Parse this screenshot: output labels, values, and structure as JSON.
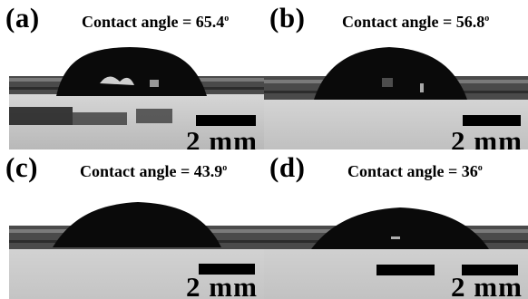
{
  "panels": [
    {
      "letter": "(a)",
      "angle_label": "Contact angle = 65.4",
      "degree": "o",
      "angle_deg": 65.4,
      "scale_label": "2 mm"
    },
    {
      "letter": "(b)",
      "angle_label": "Contact angle = 56.8",
      "degree": "o",
      "angle_deg": 56.8,
      "scale_label": "2 mm"
    },
    {
      "letter": "(c)",
      "angle_label": "Contact angle = 43.9",
      "degree": "o",
      "angle_deg": 43.9,
      "scale_label": "2 mm"
    },
    {
      "letter": "(d)",
      "angle_label": "Contact angle = 36",
      "degree": "o",
      "angle_deg": 36,
      "scale_label": "2 mm"
    }
  ],
  "colors": {
    "background": "#ffffff",
    "substrate_reflection": "#c8c8c8",
    "substrate_edge": "#3a3a3a",
    "droplet": "#0a0a0a",
    "text": "#000000"
  }
}
